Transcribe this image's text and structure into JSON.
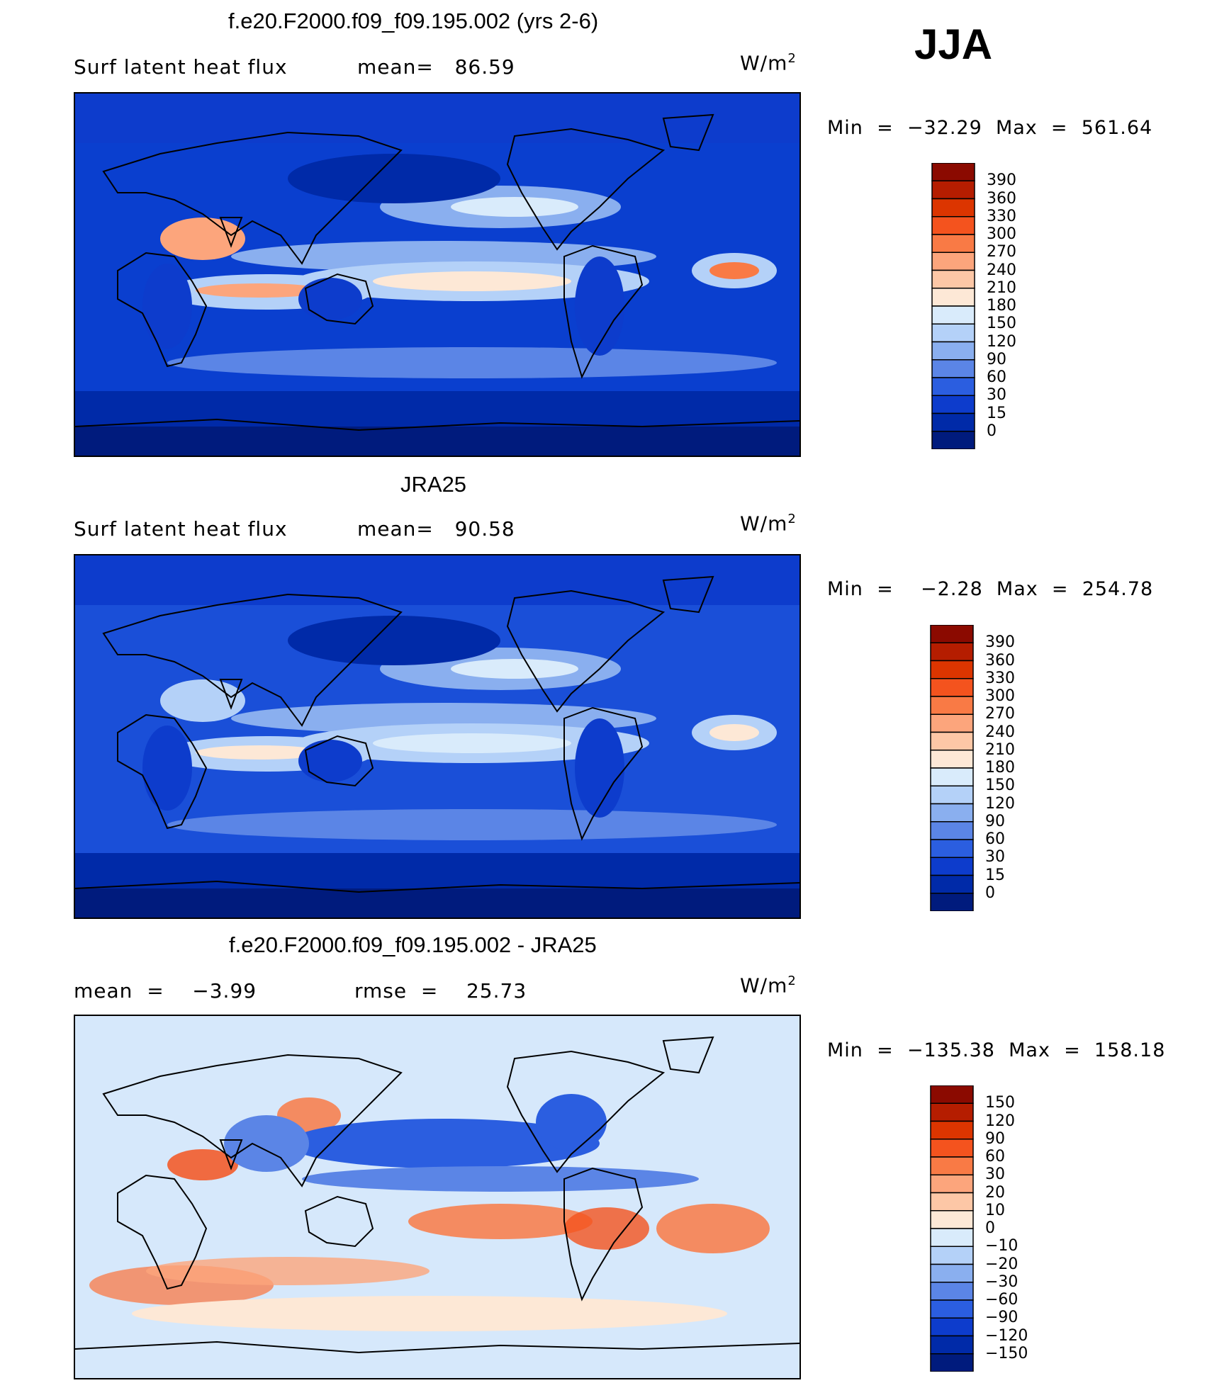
{
  "season": "JJA",
  "panels": [
    {
      "title": "f.e20.F2000.f09_f09.195.002 (yrs 2-6)",
      "left_label": "Surf latent heat flux",
      "stat_text": "mean=   86.59",
      "units_base": "W/m",
      "units_sup": "2",
      "minmax": "Min  =  −32.29  Max  =  561.64",
      "colorbar": {
        "labels": [
          "390",
          "360",
          "330",
          "300",
          "270",
          "240",
          "210",
          "180",
          "150",
          "120",
          "90",
          "60",
          "30",
          "15",
          "0"
        ],
        "colors": [
          "#8b0a00",
          "#b51d00",
          "#dc3500",
          "#f4531e",
          "#f97a45",
          "#fca57c",
          "#fdc7a6",
          "#fde8d6",
          "#d9ebfb",
          "#b4d1f8",
          "#8aafef",
          "#5b85e6",
          "#2b5ee0",
          "#0d3ccc",
          "#002aa8",
          "#001b7d"
        ]
      },
      "bg": "#0a3fcf",
      "patches": "ctrl"
    },
    {
      "title": "JRA25",
      "left_label": "Surf latent heat flux",
      "stat_text": "mean=   90.58",
      "units_base": "W/m",
      "units_sup": "2",
      "minmax": "Min  =    −2.28  Max  =  254.78",
      "colorbar": {
        "labels": [
          "390",
          "360",
          "330",
          "300",
          "270",
          "240",
          "210",
          "180",
          "150",
          "120",
          "90",
          "60",
          "30",
          "15",
          "0"
        ],
        "colors": [
          "#8b0a00",
          "#b51d00",
          "#dc3500",
          "#f4531e",
          "#f97a45",
          "#fca57c",
          "#fdc7a6",
          "#fde8d6",
          "#d9ebfb",
          "#b4d1f8",
          "#8aafef",
          "#5b85e6",
          "#2b5ee0",
          "#0d3ccc",
          "#002aa8",
          "#001b7d"
        ]
      },
      "bg": "#1a4fd8",
      "patches": "obs"
    },
    {
      "title": "f.e20.F2000.f09_f09.195.002 - JRA25",
      "left_label": "mean  =    −3.99",
      "stat_text": "rmse  =    25.73",
      "units_base": "W/m",
      "units_sup": "2",
      "minmax": "Min  =  −135.38  Max  =  158.18",
      "colorbar": {
        "labels": [
          "150",
          "120",
          "90",
          "60",
          "30",
          "20",
          "10",
          "0",
          "−10",
          "−20",
          "−30",
          "−60",
          "−90",
          "−120",
          "−150"
        ],
        "colors": [
          "#8b0a00",
          "#b51d00",
          "#dc3500",
          "#f4531e",
          "#f97a45",
          "#fca57c",
          "#fdc7a6",
          "#fde8d6",
          "#d9ebfb",
          "#b4d1f8",
          "#8aafef",
          "#5b85e6",
          "#2b5ee0",
          "#0d3ccc",
          "#002aa8",
          "#001b7d"
        ]
      },
      "bg": "#d6e8fb",
      "patches": "diff"
    }
  ]
}
